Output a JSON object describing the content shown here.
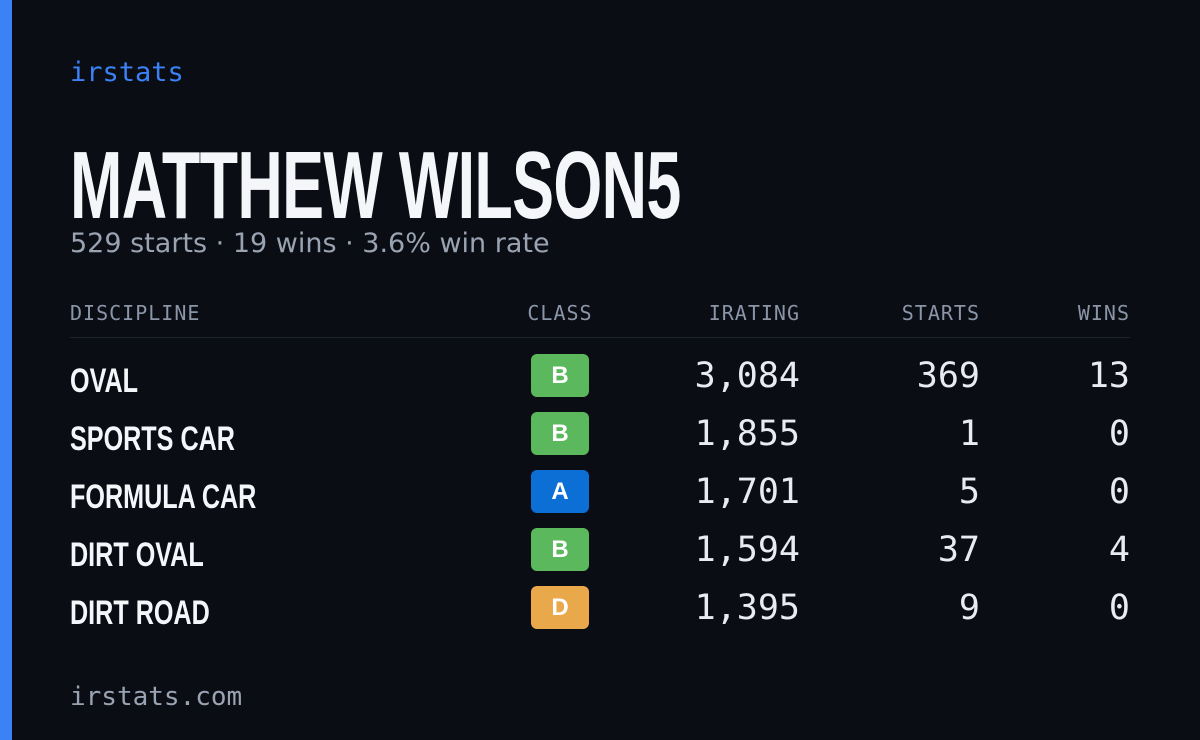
{
  "brand": "irstats",
  "player": {
    "name": "MATTHEW WILSON5",
    "summary": "529 starts · 19 wins · 3.6% win rate"
  },
  "table": {
    "headers": [
      "DISCIPLINE",
      "CLASS",
      "IRATING",
      "STARTS",
      "WINS"
    ],
    "rows": [
      {
        "discipline": "OVAL",
        "class": "B",
        "class_color": "#5cb85c",
        "irating": "3,084",
        "starts": 369,
        "wins": 13
      },
      {
        "discipline": "SPORTS CAR",
        "class": "B",
        "class_color": "#5cb85c",
        "irating": "1,855",
        "starts": 1,
        "wins": 0
      },
      {
        "discipline": "FORMULA CAR",
        "class": "A",
        "class_color": "#0b6fd6",
        "irating": "1,701",
        "starts": 5,
        "wins": 0
      },
      {
        "discipline": "DIRT OVAL",
        "class": "B",
        "class_color": "#5cb85c",
        "irating": "1,594",
        "starts": 37,
        "wins": 4
      },
      {
        "discipline": "DIRT ROAD",
        "class": "D",
        "class_color": "#e9a94b",
        "irating": "1,395",
        "starts": 9,
        "wins": 0
      }
    ]
  },
  "footer": "irstats.com"
}
